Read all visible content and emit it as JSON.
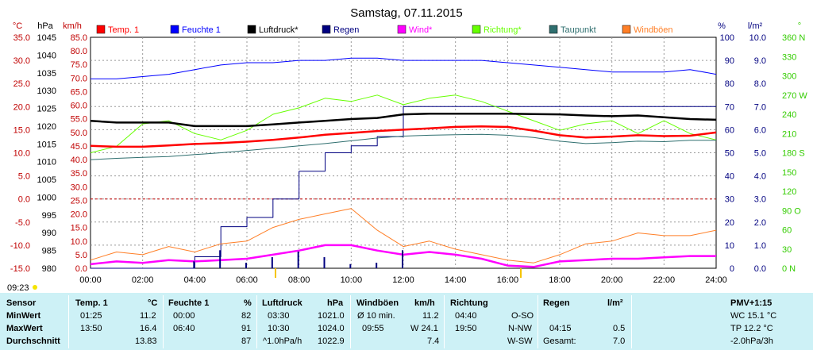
{
  "title": "Samstag, 07.11.2015",
  "axes": {
    "temp": {
      "unit": "°C",
      "color": "#c00000",
      "ticks": [
        "35.0",
        "30.0",
        "25.0",
        "20.0",
        "15.0",
        "10.0",
        "5.0",
        "0.0",
        "-5.0",
        "-10.0",
        "-15.0"
      ],
      "range": [
        -15,
        35
      ]
    },
    "pressure": {
      "unit": "hPa",
      "color": "#000000",
      "ticks": [
        "1045",
        "1040",
        "1035",
        "1030",
        "1025",
        "1020",
        "1015",
        "1010",
        "1005",
        "1000",
        "995",
        "990",
        "985",
        "980"
      ],
      "range": [
        980,
        1045
      ]
    },
    "wind": {
      "unit": "km/h",
      "color": "#c00000",
      "ticks": [
        "85.0",
        "80.0",
        "75.0",
        "70.0",
        "65.0",
        "60.0",
        "55.0",
        "50.0",
        "45.0",
        "40.0",
        "35.0",
        "30.0",
        "25.0",
        "20.0",
        "15.0",
        "10.0",
        "5.0",
        "0.0"
      ],
      "range": [
        0,
        85
      ]
    },
    "humidity": {
      "unit": "%",
      "color": "#000080",
      "ticks": [
        "100",
        "90",
        "80",
        "70",
        "60",
        "50",
        "40",
        "30",
        "20",
        "10",
        "0"
      ],
      "range": [
        0,
        100
      ]
    },
    "rain": {
      "unit": "l/m²",
      "color": "#000080",
      "ticks": [
        "10.0",
        "9.0",
        "8.0",
        "7.0",
        "6.0",
        "5.0",
        "4.0",
        "3.0",
        "2.0",
        "1.0",
        "0.0"
      ],
      "range": [
        0,
        10
      ]
    },
    "direction": {
      "unit": "°",
      "color": "#33cc00",
      "ticks": [
        "360 N",
        "330",
        "300",
        "270 W",
        "240",
        "210",
        "180 S",
        "150",
        "120",
        "90 O",
        "60",
        "30",
        "0 N"
      ],
      "range": [
        0,
        360
      ]
    }
  },
  "x_ticks": [
    "00:00",
    "02:00",
    "04:00",
    "06:00",
    "08:00",
    "10:00",
    "12:00",
    "14:00",
    "16:00",
    "18:00",
    "20:00",
    "22:00",
    "24:00"
  ],
  "legend": [
    {
      "label": "Temp. 1",
      "color": "#ff0000"
    },
    {
      "label": "Feuchte 1",
      "color": "#0000ff"
    },
    {
      "label": "Luftdruck*",
      "color": "#000000"
    },
    {
      "label": "Regen",
      "color": "#000080"
    },
    {
      "label": "Wind*",
      "color": "#ff00ff"
    },
    {
      "label": "Richtung*",
      "color": "#66ff00"
    },
    {
      "label": "Taupunkt",
      "color": "#2f6f6f"
    },
    {
      "label": "Windböen",
      "color": "#ff7f27"
    }
  ],
  "sunrise_label": "09:23",
  "chart_data": {
    "type": "line",
    "title": "Samstag, 07.11.2015",
    "x": [
      "00:00",
      "01:00",
      "02:00",
      "03:00",
      "04:00",
      "05:00",
      "06:00",
      "07:00",
      "08:00",
      "09:00",
      "10:00",
      "11:00",
      "12:00",
      "13:00",
      "14:00",
      "15:00",
      "16:00",
      "17:00",
      "18:00",
      "19:00",
      "20:00",
      "21:00",
      "22:00",
      "23:00",
      "24:00"
    ],
    "series": [
      {
        "name": "Temp. 1",
        "axis": "temp",
        "values": [
          11.5,
          11.3,
          11.3,
          11.6,
          11.9,
          12.1,
          12.4,
          12.8,
          13.3,
          13.9,
          14.3,
          14.7,
          15.0,
          15.3,
          15.6,
          15.7,
          15.6,
          14.8,
          13.8,
          13.3,
          13.5,
          13.8,
          13.6,
          13.7,
          14.4
        ]
      },
      {
        "name": "Feuchte 1",
        "axis": "humidity",
        "values": [
          82,
          82,
          83,
          84,
          86,
          88,
          89,
          89,
          90,
          90,
          91,
          91,
          90,
          90,
          90,
          90,
          89,
          88,
          87,
          86,
          85,
          85,
          85,
          86,
          84
        ]
      },
      {
        "name": "Luftdruck*",
        "axis": "pressure",
        "values": [
          1021.5,
          1021.0,
          1021.0,
          1021.0,
          1020.0,
          1020.0,
          1020.0,
          1020.5,
          1021.0,
          1021.5,
          1022.0,
          1022.3,
          1023.3,
          1023.5,
          1023.5,
          1023.5,
          1023.5,
          1023.4,
          1023.3,
          1023.0,
          1022.8,
          1023.0,
          1022.5,
          1022.0,
          1021.8
        ]
      },
      {
        "name": "Regen",
        "axis": "rain",
        "values": [
          0.0,
          0.0,
          0.0,
          0.0,
          0.5,
          1.8,
          2.2,
          3.0,
          4.2,
          5.0,
          5.3,
          5.7,
          7.0,
          7.0,
          7.0,
          7.0,
          7.0,
          7.0,
          7.0,
          7.0,
          7.0,
          7.0,
          7.0,
          7.0,
          7.0
        ]
      },
      {
        "name": "Wind*",
        "axis": "wind",
        "values": [
          1.5,
          2.5,
          2.0,
          3.0,
          2.5,
          3.0,
          3.5,
          5.0,
          6.5,
          8.5,
          8.5,
          6.5,
          5.0,
          6.0,
          5.0,
          3.5,
          1.0,
          0.5,
          2.5,
          3.0,
          3.5,
          3.5,
          4.0,
          4.5,
          4.5
        ]
      },
      {
        "name": "Richtung*",
        "axis": "direction",
        "values": [
          180,
          190,
          225,
          230,
          210,
          200,
          215,
          240,
          250,
          265,
          260,
          270,
          255,
          265,
          270,
          260,
          245,
          230,
          215,
          225,
          230,
          210,
          230,
          210,
          200
        ]
      },
      {
        "name": "Taupunkt",
        "axis": "temp",
        "values": [
          8.5,
          8.8,
          9.0,
          9.2,
          9.6,
          10.0,
          10.5,
          11.0,
          11.5,
          12.0,
          12.6,
          13.2,
          13.6,
          13.8,
          13.9,
          14.0,
          13.8,
          13.3,
          12.5,
          12.0,
          12.2,
          12.5,
          12.4,
          12.7,
          12.7
        ]
      },
      {
        "name": "Windböen",
        "axis": "wind",
        "values": [
          3,
          6,
          5,
          8,
          6,
          9,
          10,
          15,
          18,
          20,
          22,
          14,
          8,
          10,
          7,
          5,
          3,
          2,
          5,
          9,
          10,
          13,
          12,
          12,
          14
        ]
      }
    ],
    "xlim": [
      "00:00",
      "24:00"
    ],
    "grid": true,
    "legend_position": "top"
  },
  "table": {
    "headers": {
      "sensor": "Sensor",
      "temp": "Temp. 1",
      "temp_unit": "°C",
      "hum": "Feuchte 1",
      "hum_unit": "%",
      "press": "Luftdruck",
      "press_unit": "hPa",
      "gust": "Windböen",
      "gust_unit": "km/h",
      "dir": "Richtung",
      "rain": "Regen",
      "rain_unit": "l/m²",
      "pmv": "PMV+1:15"
    },
    "rows": {
      "min": {
        "label": "MinWert",
        "temp_time": "01:25",
        "temp_val": "11.2",
        "hum_time": "00:00",
        "hum_val": "82",
        "press_time": "03:30",
        "press_val": "1021.0",
        "gust_time": "Ø 10 min.",
        "gust_val": "11.2",
        "dir_time": "04:40",
        "dir_val": "O-SO",
        "pmv": "WC 15.1 °C"
      },
      "max": {
        "label": "MaxWert",
        "temp_time": "13:50",
        "temp_val": "16.4",
        "hum_time": "06:40",
        "hum_val": "91",
        "press_time": "10:30",
        "press_val": "1024.0",
        "gust_time": "09:55",
        "gust_val": "W 24.1",
        "dir_time": "19:50",
        "dir_val": "N-NW",
        "rain_time": "04:15",
        "rain_val": "0.5",
        "pmv": "TP 12.2 °C"
      },
      "avg": {
        "label": "Durchschnitt",
        "temp_val": "13.83",
        "hum_val": "87",
        "press_time": "^1.0hPa/h",
        "press_val": "1022.9",
        "gust_val": "7.4",
        "dir_val": "W-SW",
        "rain_time": "Gesamt:",
        "rain_val": "7.0",
        "pmv": "-2.0hPa/3h"
      }
    }
  }
}
